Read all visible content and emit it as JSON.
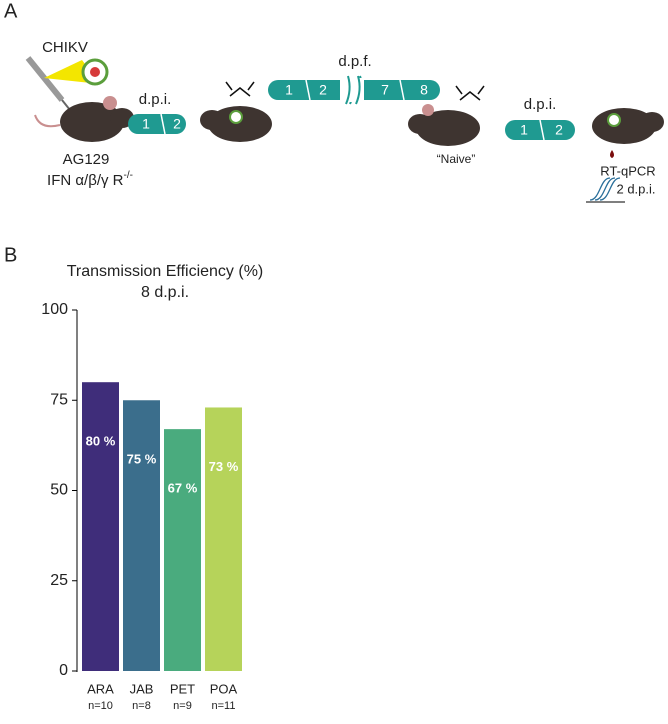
{
  "panel_a": {
    "label": "A",
    "virus": "CHIKV",
    "strain": "AG129",
    "genotype": "IFN α/β/γ R",
    "genotype_sup": "-/-",
    "timeline_1": {
      "label": "d.p.i.",
      "days": [
        "1",
        "2"
      ]
    },
    "timeline_2": {
      "label": "d.p.f.",
      "days": [
        "1",
        "2",
        "7",
        "8"
      ]
    },
    "naive": "“Naive”",
    "timeline_3": {
      "label": "d.p.i.",
      "days": [
        "1",
        "2"
      ]
    },
    "assay": "RT-qPCR",
    "assay_time": "2 d.p.i."
  },
  "panel_b": {
    "label": "B"
  },
  "chart_data": {
    "type": "bar",
    "title": "Transmission Efficiency (%)",
    "subtitle": "8 d.p.i.",
    "categories": [
      "ARA",
      "JAB",
      "PET",
      "POA"
    ],
    "sample_sizes": [
      "n=10",
      "n=8",
      "n=9",
      "n=11"
    ],
    "values": [
      80,
      75,
      67,
      73
    ],
    "value_labels": [
      "80 %",
      "75 %",
      "67 %",
      "73 %"
    ],
    "colors": [
      "#3f2d7a",
      "#3b6e8c",
      "#4aab7e",
      "#b6d35a"
    ],
    "ylim": [
      0,
      100
    ],
    "yticks": [
      0,
      25,
      50,
      75,
      100
    ]
  }
}
